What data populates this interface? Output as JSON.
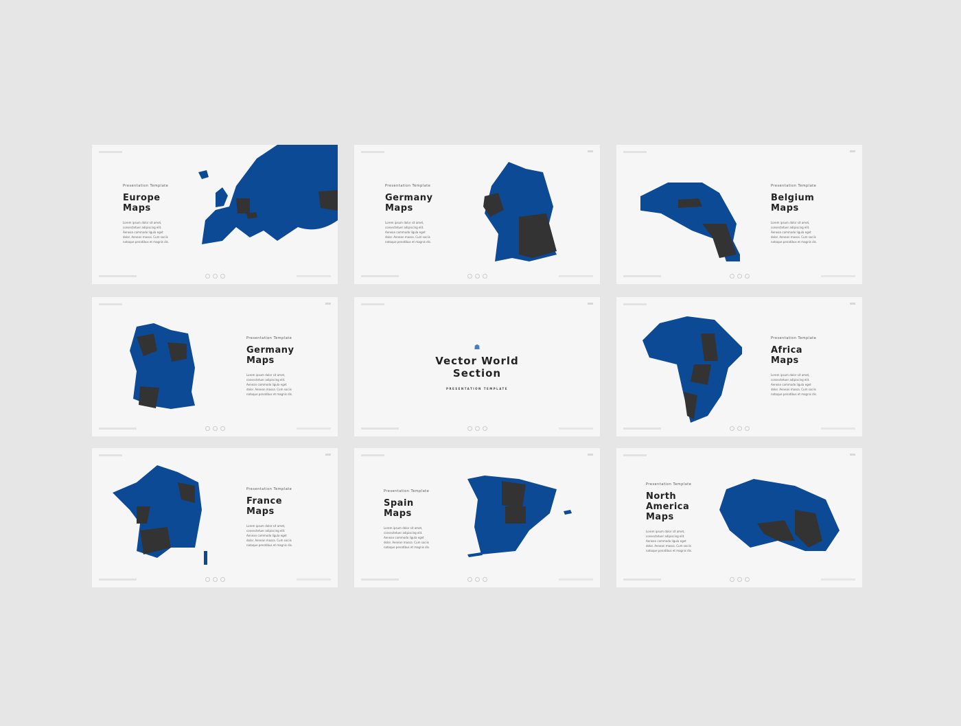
{
  "slides": [
    {
      "kicker": "Presentation Template",
      "title": "Europe Maps",
      "body": "Lorem ipsum dolor sit amet, consectetuer adipiscing elit. Aenean commodo ligula eget dolor. Aenean massa. Cum sociis natoque penatibus et magnis dis."
    },
    {
      "kicker": "Presentation Template",
      "title": "Germany Maps",
      "body": "Lorem ipsum dolor sit amet, consectetuer adipiscing elit. Aenean commodo ligula eget dolor. Aenean massa. Cum sociis natoque penatibus et magnis dis."
    },
    {
      "kicker": "Presentation Template",
      "title": "Belgium Maps",
      "body": "Lorem ipsum dolor sit amet, consectetuer adipiscing elit. Aenean commodo ligula eget dolor. Aenean massa. Cum sociis natoque penatibus et magnis dis."
    },
    {
      "kicker": "Presentation Template",
      "title": "Germany Maps",
      "body": "Lorem ipsum dolor sit amet, consectetuer adipiscing elit. Aenean commodo ligula eget dolor. Aenean massa. Cum sociis natoque penatibus et magnis dis."
    },
    {
      "title": "Vector World Section",
      "kicker": "PRESENTATION TEMPLATE"
    },
    {
      "kicker": "Presentation Template",
      "title": "Africa Maps",
      "body": "Lorem ipsum dolor sit amet, consectetuer adipiscing elit. Aenean commodo ligula eget dolor. Aenean massa. Cum sociis natoque penatibus et magnis dis."
    },
    {
      "kicker": "Presentation Template",
      "title": "France Maps",
      "body": "Lorem ipsum dolor sit amet, consectetuer adipiscing elit. Aenean commodo ligula eget dolor. Aenean massa. Cum sociis natoque penatibus et magnis dis."
    },
    {
      "kicker": "Presentation Template",
      "title": "Spain Maps",
      "body": "Lorem ipsum dolor sit amet, consectetuer adipiscing elit. Aenean commodo ligula eget dolor. Aenean massa. Cum sociis natoque penatibus et magnis dis."
    },
    {
      "kicker": "Presentation Template",
      "title": "North America Maps",
      "body": "Lorem ipsum dolor sit amet, consectetuer adipiscing elit. Aenean commodo ligula eget dolor. Aenean massa. Cum sociis natoque penatibus et magnis dis."
    }
  ],
  "colors": {
    "map": "#0d4a96",
    "highlight": "#333333",
    "background": "#e6e6e6",
    "slide": "#f6f6f6"
  }
}
